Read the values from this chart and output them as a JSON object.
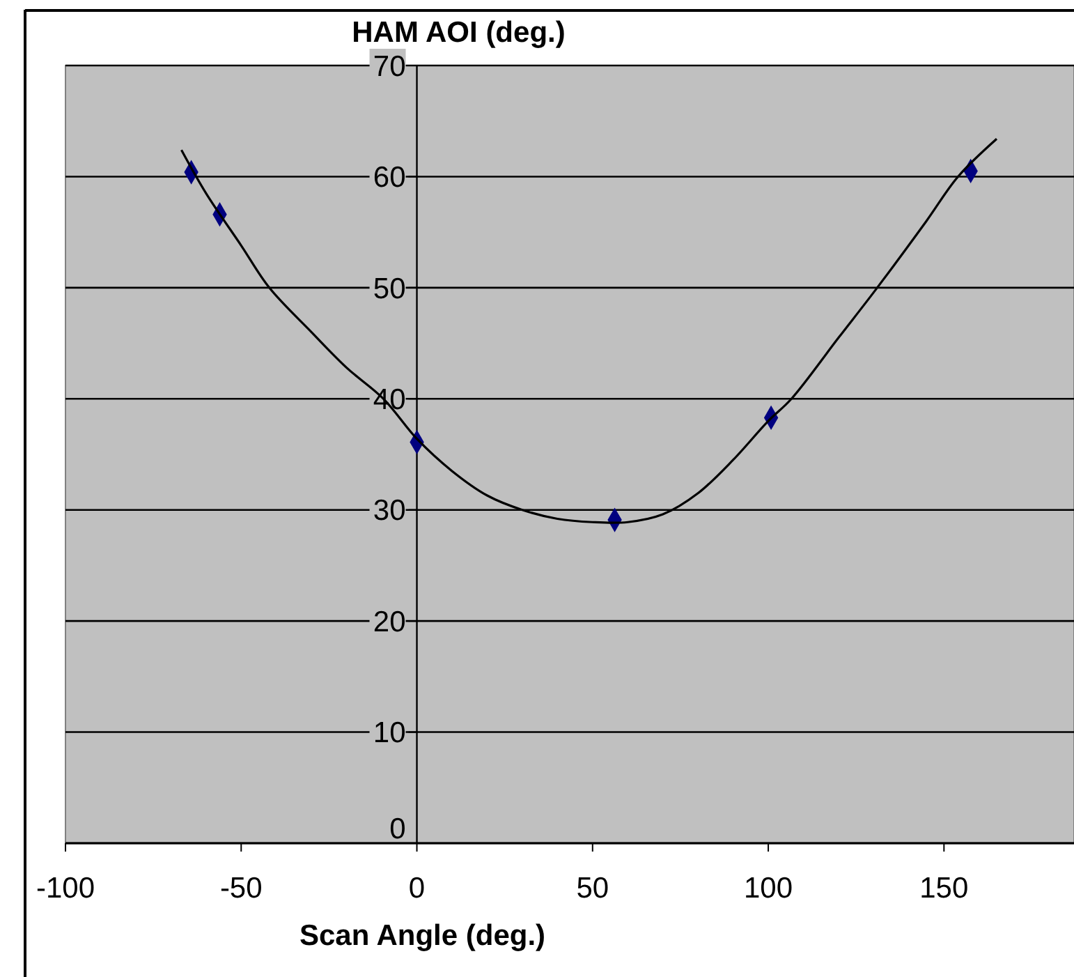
{
  "chart_data": {
    "type": "scatter",
    "xlabel": "Scan Angle (deg.)",
    "ylabel": "HAM AOI (deg.)",
    "xlim": [
      -100,
      187
    ],
    "xticks": [
      -100,
      -50,
      0,
      50,
      100,
      150
    ],
    "ylim": [
      0,
      70
    ],
    "yticks": [
      0,
      10,
      20,
      30,
      40,
      50,
      60,
      70
    ],
    "grid": "y",
    "series": [
      {
        "color": "#000080",
        "marker": "diamond",
        "x": [
          -64.2,
          -56.1,
          0,
          56.3,
          100.8,
          157.6
        ],
        "values": [
          60.4,
          56.6,
          36.1,
          29.1,
          38.3,
          60.5
        ]
      },
      {
        "type": "line",
        "color": "#000000",
        "marker": "none",
        "line_style": "solid",
        "x": [
          -67,
          -60,
          -50,
          -42,
          -30,
          -20,
          -9.5,
          0,
          10,
          20,
          30,
          40,
          50,
          60,
          70,
          80,
          90,
          100,
          106.6,
          120,
          131,
          145,
          154,
          165
        ],
        "values": [
          62.4,
          58.5,
          53.8,
          50,
          46,
          42.8,
          40,
          36.4,
          33.5,
          31.3,
          30,
          29.2,
          28.9,
          28.9,
          29.6,
          31.5,
          34.5,
          38,
          40,
          45.5,
          50,
          56,
          60,
          63.4
        ]
      }
    ]
  }
}
